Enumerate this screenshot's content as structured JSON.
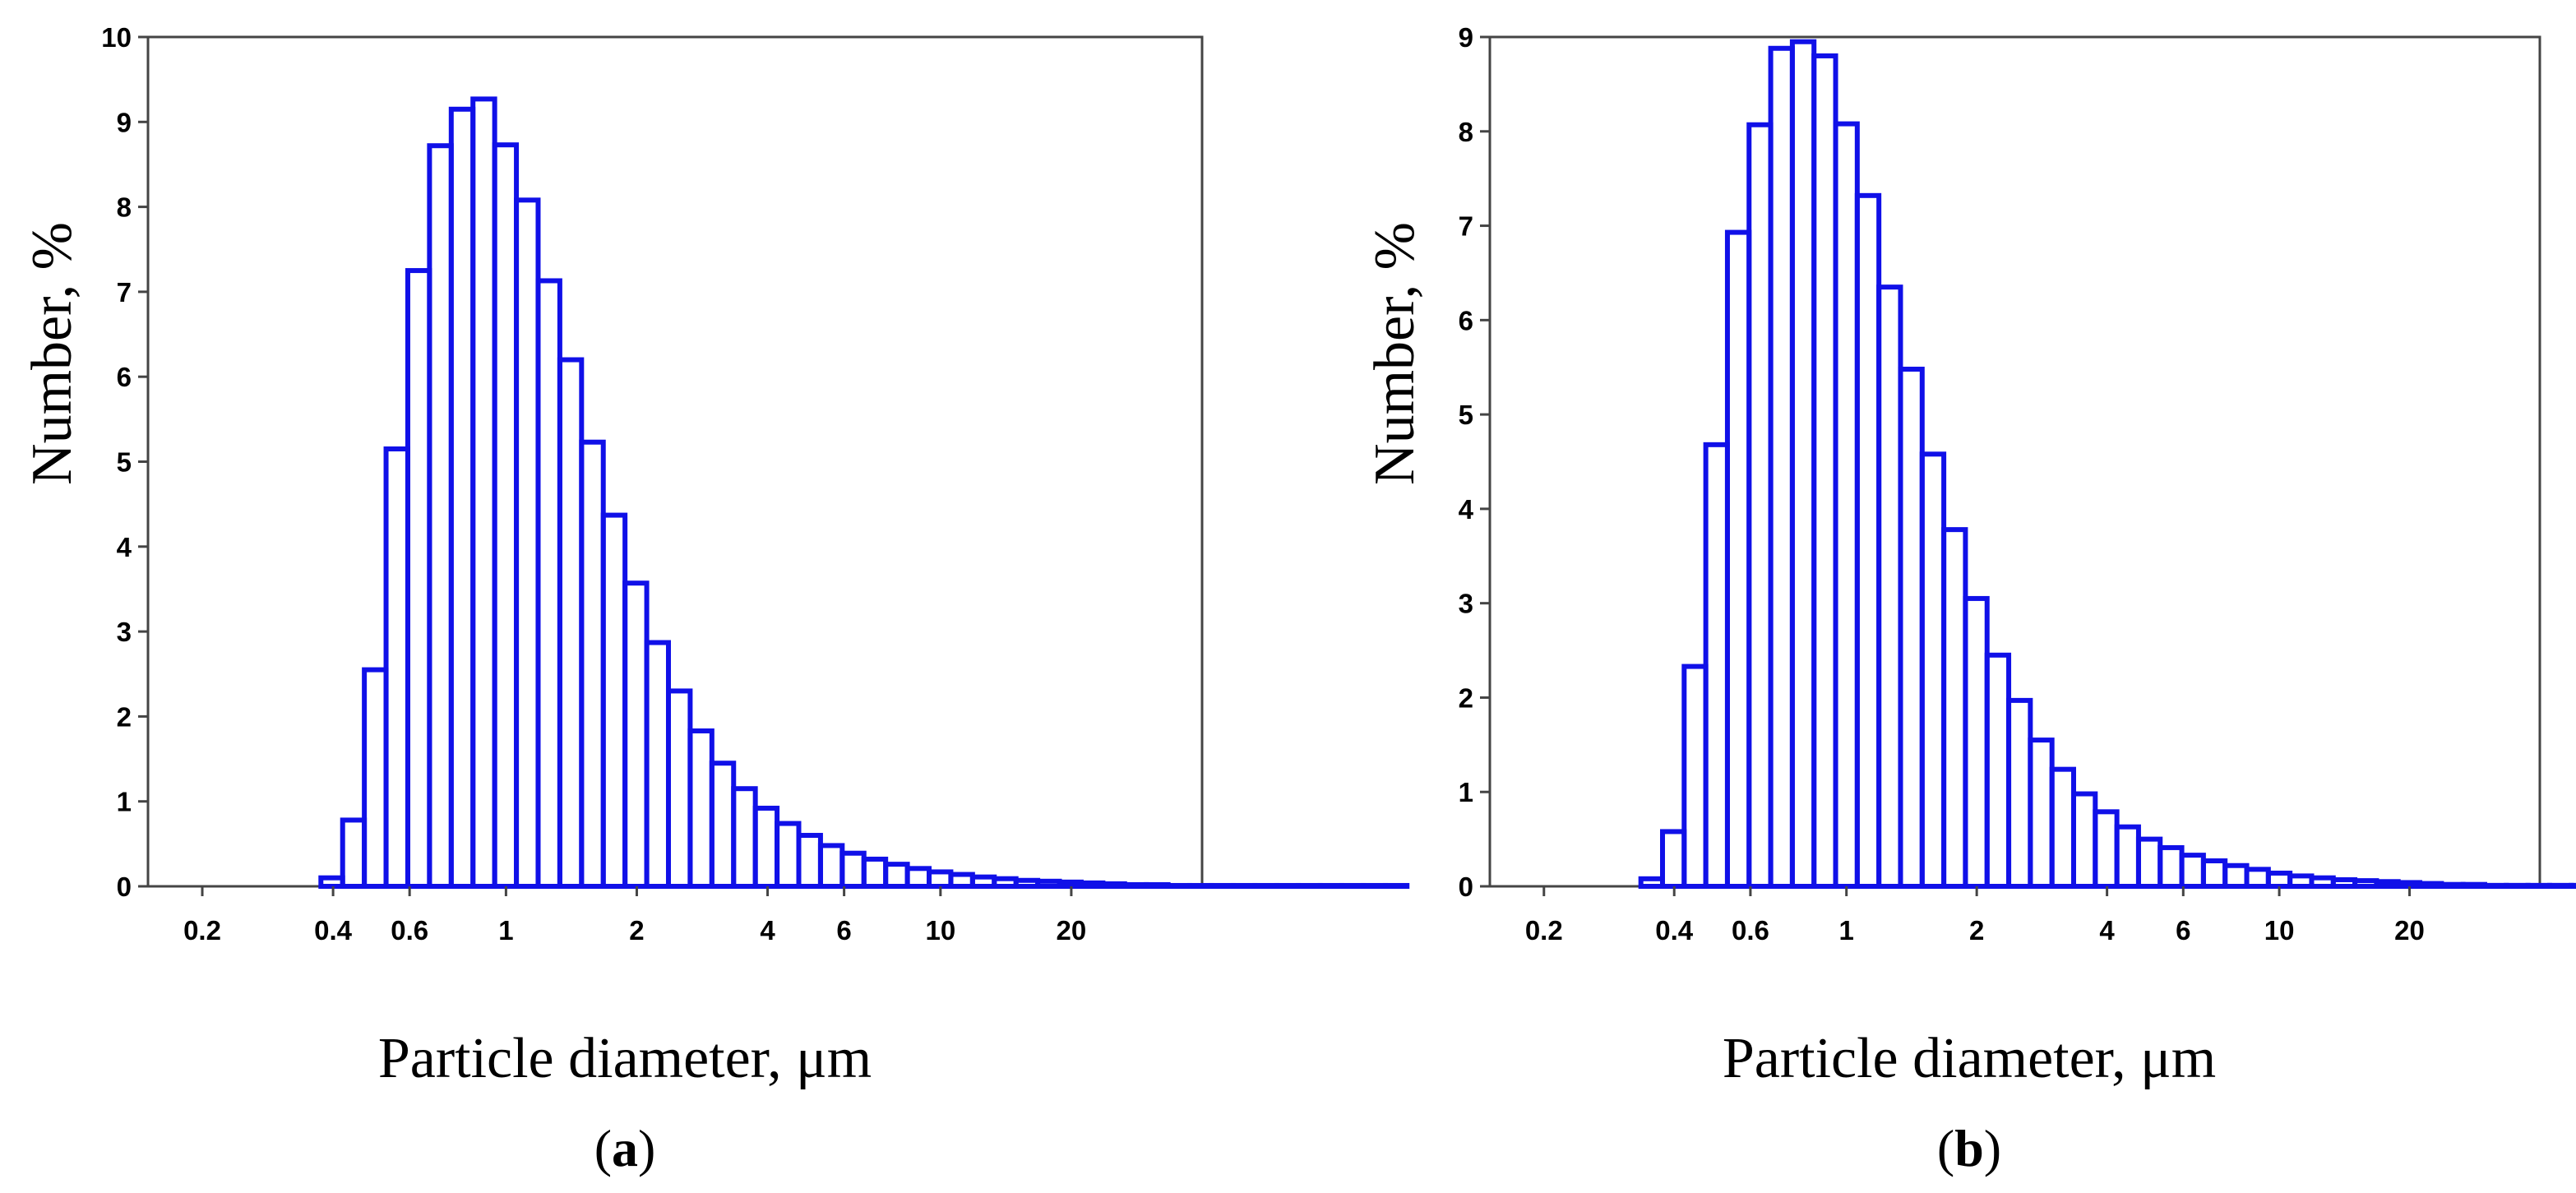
{
  "colors": {
    "bar_stroke": "#1010E8",
    "frame": "#444444",
    "text": "#000000"
  },
  "chart_data": [
    {
      "type": "bar",
      "panel_label": "a",
      "xlabel": "Particle diameter, μm",
      "ylabel": "Number, %",
      "xscale": "log",
      "xlim": [
        0.15,
        40
      ],
      "ylim": [
        0,
        10
      ],
      "yticks": [
        0,
        1,
        2,
        3,
        4,
        5,
        6,
        7,
        8,
        9,
        10
      ],
      "xticks": [
        0.2,
        0.4,
        0.6,
        1,
        2,
        4,
        6,
        10,
        20
      ],
      "xtick_labels": [
        "0.2",
        "0.4",
        "0.6",
        "1",
        "2",
        "4",
        "6",
        "10",
        "20"
      ],
      "bin_start": 0.375,
      "bin_ratio": 1.122,
      "values": [
        0.1,
        0.78,
        2.55,
        5.15,
        7.25,
        8.72,
        9.15,
        9.27,
        8.73,
        8.08,
        7.13,
        6.2,
        5.23,
        4.37,
        3.57,
        2.87,
        2.3,
        1.83,
        1.45,
        1.15,
        0.92,
        0.74,
        0.6,
        0.48,
        0.39,
        0.32,
        0.26,
        0.21,
        0.17,
        0.14,
        0.11,
        0.09,
        0.07,
        0.06,
        0.05,
        0.04,
        0.03,
        0.02,
        0.02,
        0.01,
        0.01,
        0.01,
        0.01,
        0.01,
        0.01,
        0.01,
        0.01,
        0.01,
        0.01,
        0.01
      ]
    },
    {
      "type": "bar",
      "panel_label": "b",
      "xlabel": "Particle diameter, μm",
      "ylabel": "Number, %",
      "xscale": "log",
      "xlim": [
        0.15,
        40
      ],
      "ylim": [
        0,
        9
      ],
      "yticks": [
        0,
        1,
        2,
        3,
        4,
        5,
        6,
        7,
        8,
        9
      ],
      "xticks": [
        0.2,
        0.4,
        0.6,
        1,
        2,
        4,
        6,
        10,
        20
      ],
      "xtick_labels": [
        "0.2",
        "0.4",
        "0.6",
        "1",
        "2",
        "4",
        "6",
        "10",
        "20"
      ],
      "bin_start": 0.335,
      "bin_ratio": 1.122,
      "values": [
        0.08,
        0.58,
        2.33,
        4.68,
        6.93,
        8.07,
        8.88,
        8.95,
        8.8,
        8.08,
        7.32,
        6.35,
        5.48,
        4.58,
        3.78,
        3.05,
        2.45,
        1.97,
        1.55,
        1.24,
        0.98,
        0.79,
        0.63,
        0.5,
        0.41,
        0.33,
        0.27,
        0.22,
        0.18,
        0.14,
        0.11,
        0.09,
        0.07,
        0.06,
        0.05,
        0.04,
        0.03,
        0.02,
        0.02,
        0.01,
        0.01,
        0.01,
        0.01,
        0.01,
        0.01,
        0.01,
        0.01,
        0.01,
        0.01,
        0.01
      ]
    }
  ]
}
